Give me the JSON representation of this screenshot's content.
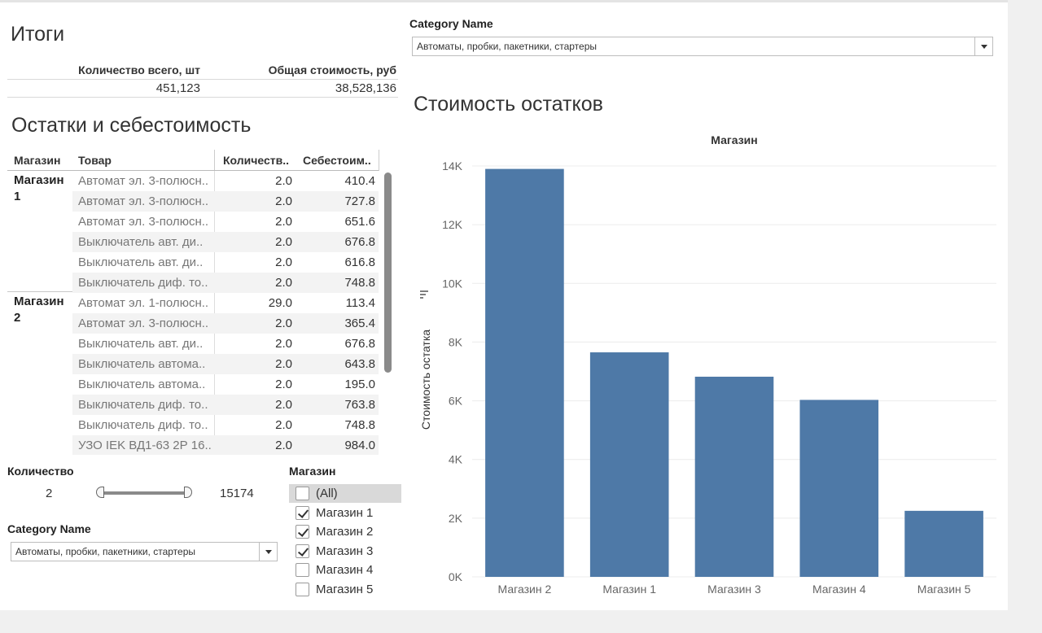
{
  "totals": {
    "title": "Итоги",
    "qty_header": "Количество всего, шт",
    "cost_header": "Общая стоимость, руб",
    "qty_value": "451,123",
    "cost_value": "38,528,136"
  },
  "table": {
    "title": "Остатки и себестоимость",
    "headers": {
      "store": "Магазин",
      "product": "Товар",
      "qty": "Количеств..",
      "cost": "Себестоим.."
    },
    "groups": [
      {
        "store_line1": "Магазин",
        "store_line2": "1"
      },
      {
        "store_line1": "Магазин",
        "store_line2": "2"
      }
    ],
    "rows": [
      {
        "product": "Автомат эл. 3-полюсн..",
        "qty": "2.0",
        "cost": "410.4"
      },
      {
        "product": "Автомат эл. 3-полюсн..",
        "qty": "2.0",
        "cost": "727.8"
      },
      {
        "product": "Автомат эл. 3-полюсн..",
        "qty": "2.0",
        "cost": "651.6"
      },
      {
        "product": "Выключатель авт. ди..",
        "qty": "2.0",
        "cost": "676.8"
      },
      {
        "product": "Выключатель авт. ди..",
        "qty": "2.0",
        "cost": "616.8"
      },
      {
        "product": "Выключатель диф. то..",
        "qty": "2.0",
        "cost": "748.8"
      },
      {
        "product": "Автомат эл. 1-полюсн..",
        "qty": "29.0",
        "cost": "113.4"
      },
      {
        "product": "Автомат эл. 3-полюсн..",
        "qty": "2.0",
        "cost": "365.4"
      },
      {
        "product": "Выключатель авт. ди..",
        "qty": "2.0",
        "cost": "676.8"
      },
      {
        "product": "Выключатель автома..",
        "qty": "2.0",
        "cost": "643.8"
      },
      {
        "product": "Выключатель автома..",
        "qty": "2.0",
        "cost": "195.0"
      },
      {
        "product": "Выключатель диф. то..",
        "qty": "2.0",
        "cost": "763.8"
      },
      {
        "product": "Выключатель диф. то..",
        "qty": "2.0",
        "cost": "748.8"
      },
      {
        "product": "УЗО IEK ВД1-63 2Р 16..",
        "qty": "2.0",
        "cost": "984.0"
      }
    ]
  },
  "qty_filter": {
    "label": "Количество",
    "min": "2",
    "max": "15174"
  },
  "category_filter_left": {
    "label": "Category Name",
    "value": "Автоматы, пробки, пакетники, стартеры"
  },
  "category_filter_top": {
    "label": "Category Name",
    "value": "Автоматы, пробки, пакетники, стартеры"
  },
  "store_filter": {
    "label": "Магазин",
    "options": [
      {
        "label": "(All)",
        "checked": false
      },
      {
        "label": "Магазин 1",
        "checked": true
      },
      {
        "label": "Магазин 2",
        "checked": true
      },
      {
        "label": "Магазин 3",
        "checked": true
      },
      {
        "label": "Магазин 4",
        "checked": false
      },
      {
        "label": "Магазин 5",
        "checked": false
      }
    ]
  },
  "chart_data": {
    "type": "bar",
    "title": "Стоимость остатков",
    "subtitle": "Магазин",
    "ylabel": "Стоимость остатка",
    "categories": [
      "Магазин 2",
      "Магазин 1",
      "Магазин 3",
      "Магазин 4",
      "Магазин 5"
    ],
    "values": [
      13900,
      7650,
      6820,
      6030,
      2250
    ],
    "ylim": [
      0,
      14000
    ],
    "yticks": [
      "0K",
      "2K",
      "4K",
      "6K",
      "8K",
      "10K",
      "12K",
      "14K"
    ],
    "color": "#4e79a7",
    "grid": true
  }
}
